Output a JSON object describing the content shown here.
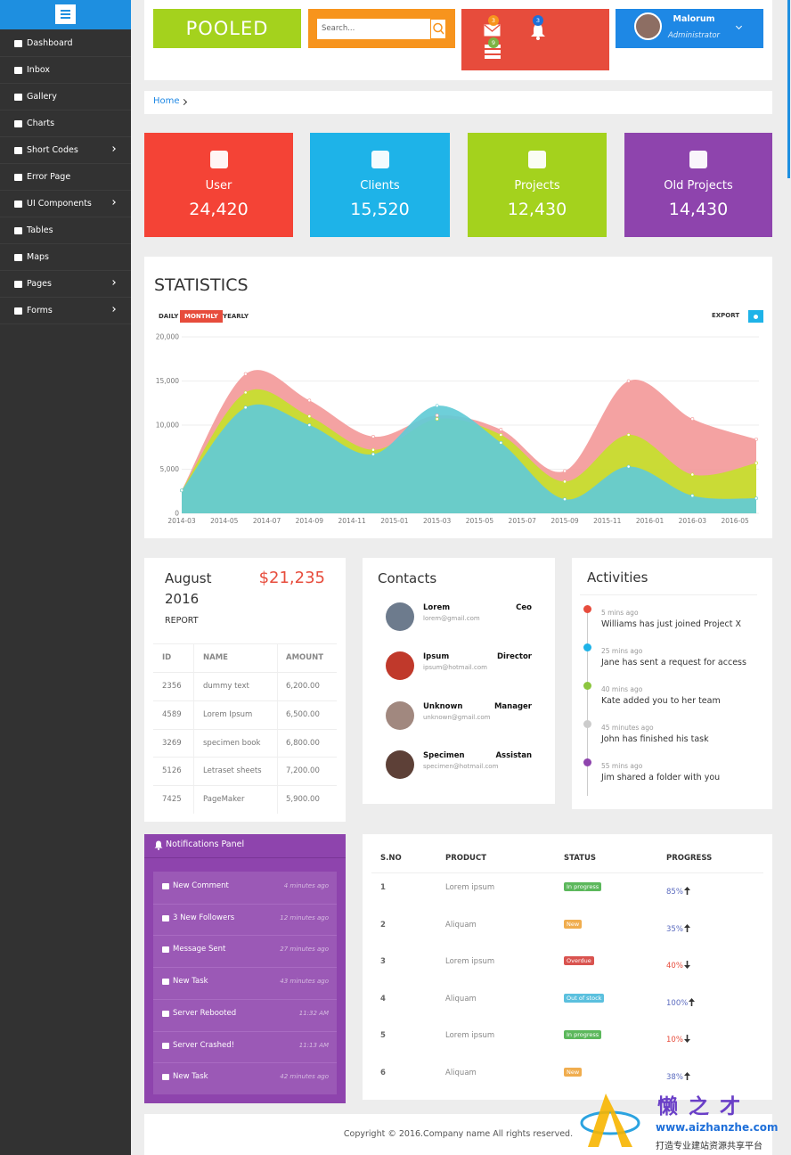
{
  "header": {
    "logo": "POOLED",
    "search_placeholder": "Search...",
    "badges": [
      {
        "text": "3",
        "color": "#f7941d"
      },
      {
        "text": "9",
        "color": "#7cb342"
      },
      {
        "text": "3",
        "color": "#1e6fd9"
      }
    ],
    "user_name": "Malorum",
    "user_role": "Administrator"
  },
  "sidebar": {
    "items": [
      {
        "label": "Dashboard",
        "submenu": false
      },
      {
        "label": "Inbox",
        "submenu": false
      },
      {
        "label": "Gallery",
        "submenu": false
      },
      {
        "label": "Charts",
        "submenu": false
      },
      {
        "label": "Short Codes",
        "submenu": true
      },
      {
        "label": "Error Page",
        "submenu": false
      },
      {
        "label": "UI Components",
        "submenu": true
      },
      {
        "label": "Tables",
        "submenu": false
      },
      {
        "label": "Maps",
        "submenu": false
      },
      {
        "label": "Pages",
        "submenu": true
      },
      {
        "label": "Forms",
        "submenu": true
      }
    ]
  },
  "breadcrumb": "Home",
  "stat_cards": [
    {
      "label": "User",
      "value": "24,420",
      "color": "#f44336"
    },
    {
      "label": "Clients",
      "value": "15,520",
      "color": "#1eb3e8"
    },
    {
      "label": "Projects",
      "value": "12,430",
      "color": "#a4d21d"
    },
    {
      "label": "Old Projects",
      "value": "14,430",
      "color": "#8e44ad"
    }
  ],
  "statistics": {
    "title": "STATISTICS",
    "tabs": [
      "DAILY",
      "MONTHLY",
      "YEARLY"
    ],
    "active_tab": 1,
    "export": "EXPORT",
    "chart_data": {
      "type": "area",
      "x": [
        "2014-03",
        "2014-06",
        "2014-09",
        "2014-12",
        "2015-03",
        "2015-06",
        "2015-09",
        "2015-12",
        "2016-03",
        "2016-06"
      ],
      "xlim": [
        "2014-03",
        "2016-06"
      ],
      "xticks": [
        "2014-03",
        "2014-05",
        "2014-07",
        "2014-09",
        "2014-11",
        "2015-01",
        "2015-03",
        "2015-05",
        "2015-07",
        "2015-09",
        "2015-11",
        "2016-01",
        "2016-03",
        "2016-05"
      ],
      "ylim": [
        0,
        20000
      ],
      "yticks": [
        0,
        {
          "value": 5000,
          "label": "5,000"
        },
        {
          "value": 10000,
          "label": "10,000"
        },
        {
          "value": 15000,
          "label": "15,000"
        },
        {
          "value": 20000,
          "label": "20,000"
        }
      ],
      "grid": true,
      "series": [
        {
          "color": "#f39a9a",
          "values": [
            2600,
            15800,
            12800,
            8700,
            11100,
            9500,
            4800,
            15000,
            10700,
            8400
          ]
        },
        {
          "color": "#c6df2c",
          "values": [
            2600,
            13700,
            11000,
            7200,
            10700,
            8900,
            3600,
            8900,
            4400,
            5700
          ]
        },
        {
          "color": "#62cbd6",
          "values": [
            2600,
            12000,
            10000,
            6700,
            12200,
            8000,
            1600,
            5300,
            2000,
            1700
          ]
        }
      ]
    }
  },
  "report": {
    "month": "August",
    "year": "2016",
    "amount": "$21,235",
    "label": "REPORT",
    "columns": [
      "ID",
      "NAME",
      "AMOUNT"
    ],
    "rows": [
      [
        "2356",
        "dummy text",
        "6,200.00"
      ],
      [
        "4589",
        "Lorem Ipsum",
        "6,500.00"
      ],
      [
        "3269",
        "specimen book",
        "6,800.00"
      ],
      [
        "5126",
        "Letraset sheets",
        "7,200.00"
      ],
      [
        "7425",
        "PageMaker",
        "5,900.00"
      ]
    ]
  },
  "contacts": {
    "title": "Contacts",
    "items": [
      {
        "name": "Lorem",
        "role": "Ceo",
        "email": "lorem@gmail.com"
      },
      {
        "name": "Ipsum",
        "role": "Director",
        "email": "ipsum@hotmail.com"
      },
      {
        "name": "Unknown",
        "role": "Manager",
        "email": "unknown@gmail.com"
      },
      {
        "name": "Specimen",
        "role": "Assistan",
        "email": "specimen@hotmail.com"
      }
    ]
  },
  "activities": {
    "title": "Activities",
    "items": [
      {
        "time": "5 mins ago",
        "text": "Williams has just joined Project X",
        "color": "#e74c3c"
      },
      {
        "time": "25 mins ago",
        "text": "Jane has sent a request for access",
        "color": "#1eb3e8"
      },
      {
        "time": "40 mins ago",
        "text": "Kate added you to her team",
        "color": "#8cc63f"
      },
      {
        "time": "45 minutes ago",
        "text": "John has finished his task",
        "color": "#cccccc"
      },
      {
        "time": "55 mins ago",
        "text": "Jim shared a folder with you",
        "color": "#8e44ad"
      }
    ]
  },
  "notifications": {
    "title": "Notifications Panel",
    "items": [
      {
        "text": "New Comment",
        "time": "4 minutes ago"
      },
      {
        "text": "3 New Followers",
        "time": "12 minutes ago"
      },
      {
        "text": "Message Sent",
        "time": "27 minutes ago"
      },
      {
        "text": "New Task",
        "time": "43 minutes ago"
      },
      {
        "text": "Server Rebooted",
        "time": "11:32 AM"
      },
      {
        "text": "Server Crashed!",
        "time": "11:13 AM"
      },
      {
        "text": "New Task",
        "time": "42 minutes ago"
      }
    ]
  },
  "products": {
    "columns": [
      "S.NO",
      "PRODUCT",
      "STATUS",
      "PROGRESS"
    ],
    "rows": [
      {
        "sno": "1",
        "product": "Lorem ipsum",
        "status": "In progress",
        "status_color": "#5cb85c",
        "progress": "85%",
        "trend": "up"
      },
      {
        "sno": "2",
        "product": "Aliquam",
        "status": "New",
        "status_color": "#f0ad4e",
        "progress": "35%",
        "trend": "up"
      },
      {
        "sno": "3",
        "product": "Lorem ipsum",
        "status": "Overdue",
        "status_color": "#d9534f",
        "progress": "40%",
        "trend": "down"
      },
      {
        "sno": "4",
        "product": "Aliquam",
        "status": "Out of stock",
        "status_color": "#5bc0de",
        "progress": "100%",
        "trend": "up"
      },
      {
        "sno": "5",
        "product": "Lorem ipsum",
        "status": "In progress",
        "status_color": "#5cb85c",
        "progress": "10%",
        "trend": "down"
      },
      {
        "sno": "6",
        "product": "Aliquam",
        "status": "New",
        "status_color": "#f0ad4e",
        "progress": "38%",
        "trend": "up"
      }
    ]
  },
  "footer": "Copyright © 2016.Company name All rights reserved.",
  "watermark": {
    "brand": "懒之才",
    "url": "www.aizhanzhe.com",
    "slogan": "打造专业建站资源共享平台"
  }
}
